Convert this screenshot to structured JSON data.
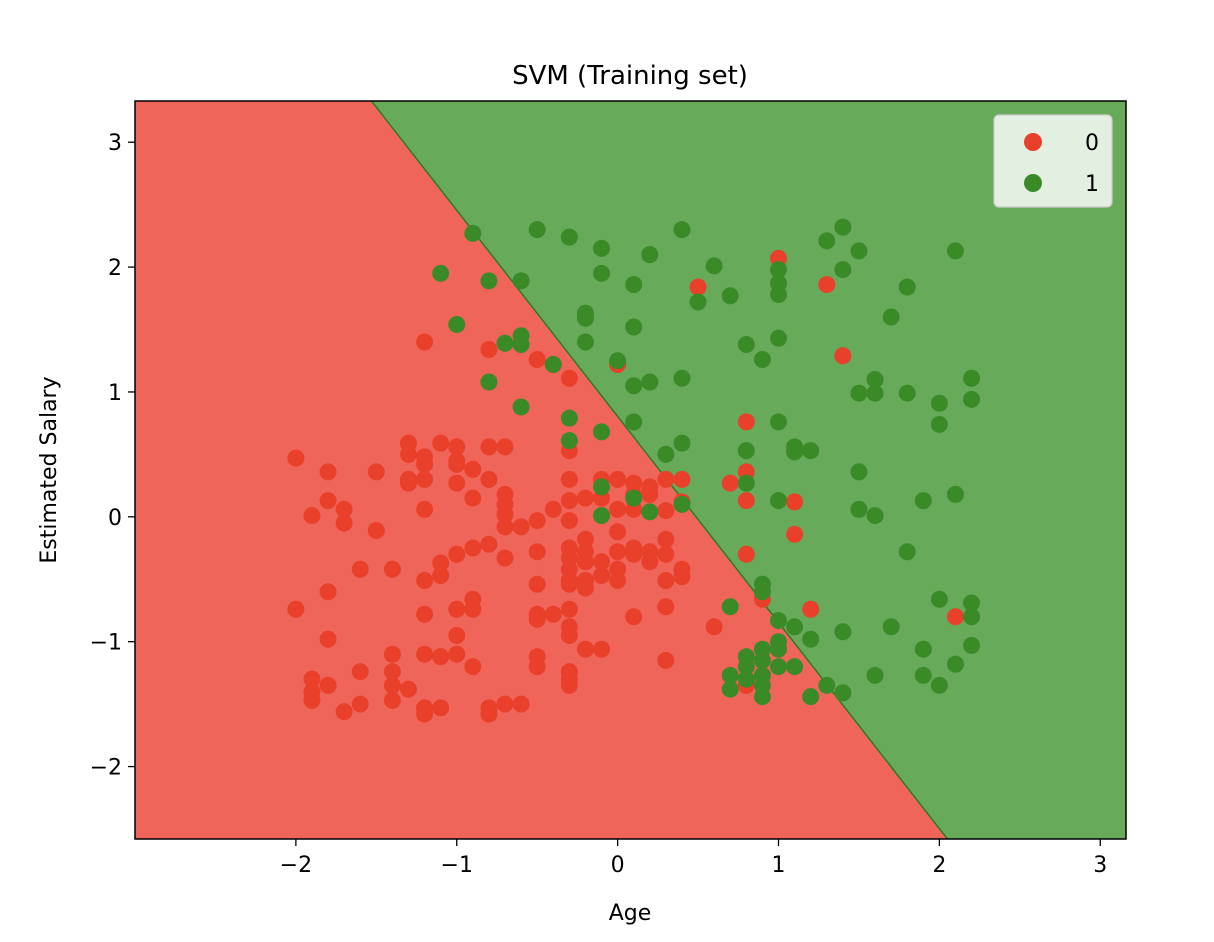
{
  "chart_data": {
    "type": "scatter",
    "title": "SVM (Training set)",
    "xlabel": "Age",
    "ylabel": "Estimated Salary",
    "xlim": [
      -3.0,
      3.16
    ],
    "ylim": [
      -2.58,
      3.33
    ],
    "xticks": [
      -2,
      -1,
      0,
      1,
      2,
      3
    ],
    "yticks": [
      -2,
      -1,
      0,
      1,
      2,
      3
    ],
    "xtick_labels": [
      "−2",
      "−1",
      "0",
      "1",
      "2",
      "3"
    ],
    "ytick_labels": [
      "−2",
      "−1",
      "0",
      "1",
      "2",
      "3"
    ],
    "grid": false,
    "legend_position": "top-right",
    "decision_boundary": {
      "p1": [
        -1.53,
        3.33
      ],
      "p2": [
        2.05,
        -2.58
      ]
    },
    "regions": [
      {
        "class": "0",
        "side": "lower-left",
        "color": "#f0655a"
      },
      {
        "class": "1",
        "side": "upper-right",
        "color": "#66aa5a"
      }
    ],
    "series": [
      {
        "name": "0",
        "color": "#e8402a",
        "points": [
          [
            -2.0,
            0.47
          ],
          [
            -2.0,
            -0.74
          ],
          [
            -1.9,
            0.01
          ],
          [
            -1.9,
            -1.3
          ],
          [
            -1.9,
            -1.4
          ],
          [
            -1.9,
            -1.47
          ],
          [
            -1.8,
            0.36
          ],
          [
            -1.8,
            0.13
          ],
          [
            -1.8,
            -0.6
          ],
          [
            -1.8,
            -0.98
          ],
          [
            -1.8,
            -1.35
          ],
          [
            -1.7,
            0.06
          ],
          [
            -1.7,
            -0.05
          ],
          [
            -1.7,
            -1.56
          ],
          [
            -1.6,
            -0.42
          ],
          [
            -1.6,
            -1.24
          ],
          [
            -1.6,
            -1.5
          ],
          [
            -1.5,
            0.36
          ],
          [
            -1.5,
            -0.11
          ],
          [
            -1.4,
            -0.42
          ],
          [
            -1.4,
            -1.1
          ],
          [
            -1.4,
            -1.24
          ],
          [
            -1.4,
            -1.35
          ],
          [
            -1.4,
            -1.47
          ],
          [
            -1.3,
            0.59
          ],
          [
            -1.3,
            0.5
          ],
          [
            -1.3,
            0.3
          ],
          [
            -1.3,
            0.27
          ],
          [
            -1.3,
            -1.38
          ],
          [
            -1.2,
            1.4
          ],
          [
            -1.2,
            0.48
          ],
          [
            -1.2,
            0.42
          ],
          [
            -1.2,
            0.3
          ],
          [
            -1.2,
            0.06
          ],
          [
            -1.2,
            -0.51
          ],
          [
            -1.2,
            -0.78
          ],
          [
            -1.2,
            -1.1
          ],
          [
            -1.2,
            -1.53
          ],
          [
            -1.2,
            -1.58
          ],
          [
            -1.1,
            0.59
          ],
          [
            -1.1,
            -0.37
          ],
          [
            -1.1,
            -0.47
          ],
          [
            -1.1,
            -1.12
          ],
          [
            -1.1,
            -1.53
          ],
          [
            -1.0,
            0.56
          ],
          [
            -1.0,
            0.45
          ],
          [
            -1.0,
            0.42
          ],
          [
            -1.0,
            0.27
          ],
          [
            -1.0,
            -0.3
          ],
          [
            -1.0,
            -0.74
          ],
          [
            -1.0,
            -0.95
          ],
          [
            -1.0,
            -1.1
          ],
          [
            -0.9,
            0.38
          ],
          [
            -0.9,
            0.15
          ],
          [
            -0.9,
            -0.25
          ],
          [
            -0.9,
            -0.66
          ],
          [
            -0.9,
            -0.74
          ],
          [
            -0.9,
            -1.2
          ],
          [
            -0.8,
            1.34
          ],
          [
            -0.8,
            0.56
          ],
          [
            -0.8,
            0.3
          ],
          [
            -0.8,
            -0.22
          ],
          [
            -0.8,
            -1.53
          ],
          [
            -0.8,
            -1.58
          ],
          [
            -0.7,
            0.56
          ],
          [
            -0.7,
            0.18
          ],
          [
            -0.7,
            0.1
          ],
          [
            -0.7,
            0.02
          ],
          [
            -0.7,
            -0.08
          ],
          [
            -0.7,
            -0.33
          ],
          [
            -0.7,
            -1.5
          ],
          [
            -0.6,
            -0.08
          ],
          [
            -0.6,
            -1.5
          ],
          [
            -0.5,
            1.26
          ],
          [
            -0.5,
            -0.03
          ],
          [
            -0.5,
            -0.28
          ],
          [
            -0.5,
            -0.54
          ],
          [
            -0.5,
            -0.78
          ],
          [
            -0.5,
            -0.82
          ],
          [
            -0.5,
            -1.12
          ],
          [
            -0.5,
            -1.2
          ],
          [
            -0.4,
            1.22
          ],
          [
            -0.4,
            0.06
          ],
          [
            -0.4,
            -0.78
          ],
          [
            -0.3,
            1.11
          ],
          [
            -0.3,
            0.53
          ],
          [
            -0.3,
            0.3
          ],
          [
            -0.3,
            0.13
          ],
          [
            -0.3,
            -0.03
          ],
          [
            -0.3,
            -0.25
          ],
          [
            -0.3,
            -0.33
          ],
          [
            -0.3,
            -0.42
          ],
          [
            -0.3,
            -0.51
          ],
          [
            -0.3,
            -0.54
          ],
          [
            -0.3,
            -0.74
          ],
          [
            -0.3,
            -0.88
          ],
          [
            -0.3,
            -0.95
          ],
          [
            -0.3,
            -1.24
          ],
          [
            -0.3,
            -1.3
          ],
          [
            -0.3,
            -1.35
          ],
          [
            -0.2,
            0.15
          ],
          [
            -0.2,
            -0.18
          ],
          [
            -0.2,
            -0.28
          ],
          [
            -0.2,
            -0.36
          ],
          [
            -0.2,
            -0.51
          ],
          [
            -0.2,
            -0.57
          ],
          [
            -0.2,
            -1.06
          ],
          [
            -0.1,
            0.3
          ],
          [
            -0.1,
            0.15
          ],
          [
            -0.1,
            -0.36
          ],
          [
            -0.1,
            -0.47
          ],
          [
            -0.1,
            -1.06
          ],
          [
            0.0,
            1.22
          ],
          [
            0.0,
            0.3
          ],
          [
            0.0,
            0.06
          ],
          [
            0.0,
            -0.12
          ],
          [
            0.0,
            -0.28
          ],
          [
            0.0,
            -0.42
          ],
          [
            0.0,
            -0.51
          ],
          [
            0.1,
            0.27
          ],
          [
            0.1,
            0.18
          ],
          [
            0.1,
            0.06
          ],
          [
            0.1,
            -0.25
          ],
          [
            0.1,
            -0.3
          ],
          [
            0.1,
            -0.8
          ],
          [
            0.2,
            0.24
          ],
          [
            0.2,
            0.18
          ],
          [
            0.2,
            -0.28
          ],
          [
            0.2,
            -0.36
          ],
          [
            0.3,
            0.3
          ],
          [
            0.3,
            0.05
          ],
          [
            0.3,
            -0.18
          ],
          [
            0.3,
            -0.3
          ],
          [
            0.3,
            -0.51
          ],
          [
            0.3,
            -0.72
          ],
          [
            0.3,
            -1.15
          ],
          [
            0.4,
            0.3
          ],
          [
            0.4,
            0.12
          ],
          [
            0.4,
            -0.42
          ],
          [
            0.4,
            -0.48
          ],
          [
            0.5,
            1.84
          ],
          [
            0.6,
            -0.88
          ],
          [
            0.7,
            0.27
          ],
          [
            0.8,
            0.76
          ],
          [
            0.8,
            0.36
          ],
          [
            0.8,
            0.13
          ],
          [
            0.8,
            -0.3
          ],
          [
            0.8,
            -1.35
          ],
          [
            0.9,
            -0.66
          ],
          [
            1.0,
            2.07
          ],
          [
            1.1,
            0.12
          ],
          [
            1.1,
            -0.14
          ],
          [
            1.2,
            -0.74
          ],
          [
            1.3,
            1.86
          ],
          [
            1.4,
            1.29
          ],
          [
            2.1,
            -0.8
          ]
        ]
      },
      {
        "name": "1",
        "color": "#3a8a28",
        "points": [
          [
            -1.1,
            1.95
          ],
          [
            -1.0,
            1.54
          ],
          [
            -0.9,
            2.27
          ],
          [
            -0.8,
            1.89
          ],
          [
            -0.8,
            1.08
          ],
          [
            -0.7,
            1.39
          ],
          [
            -0.6,
            1.89
          ],
          [
            -0.6,
            1.45
          ],
          [
            -0.6,
            1.38
          ],
          [
            -0.6,
            0.88
          ],
          [
            -0.5,
            2.3
          ],
          [
            -0.4,
            1.22
          ],
          [
            -0.3,
            2.24
          ],
          [
            -0.3,
            0.79
          ],
          [
            -0.3,
            0.61
          ],
          [
            -0.2,
            1.63
          ],
          [
            -0.2,
            1.59
          ],
          [
            -0.2,
            1.4
          ],
          [
            -0.1,
            2.15
          ],
          [
            -0.1,
            1.95
          ],
          [
            -0.1,
            0.68
          ],
          [
            -0.1,
            0.24
          ],
          [
            -0.1,
            0.01
          ],
          [
            0.0,
            1.25
          ],
          [
            0.1,
            1.86
          ],
          [
            0.1,
            1.52
          ],
          [
            0.1,
            1.05
          ],
          [
            0.1,
            0.76
          ],
          [
            0.1,
            0.15
          ],
          [
            0.2,
            2.1
          ],
          [
            0.2,
            1.08
          ],
          [
            0.2,
            0.04
          ],
          [
            0.3,
            0.5
          ],
          [
            0.4,
            2.3
          ],
          [
            0.4,
            1.11
          ],
          [
            0.4,
            0.59
          ],
          [
            0.4,
            0.1
          ],
          [
            0.5,
            1.72
          ],
          [
            0.6,
            2.01
          ],
          [
            0.7,
            1.77
          ],
          [
            0.7,
            -0.72
          ],
          [
            0.7,
            -1.27
          ],
          [
            0.7,
            -1.38
          ],
          [
            0.8,
            1.38
          ],
          [
            0.8,
            0.53
          ],
          [
            0.8,
            0.27
          ],
          [
            0.8,
            -1.12
          ],
          [
            0.8,
            -1.2
          ],
          [
            0.8,
            -1.3
          ],
          [
            0.9,
            1.26
          ],
          [
            0.9,
            -0.54
          ],
          [
            0.9,
            -0.6
          ],
          [
            0.9,
            -1.06
          ],
          [
            0.9,
            -1.15
          ],
          [
            0.9,
            -1.27
          ],
          [
            0.9,
            -1.35
          ],
          [
            0.9,
            -1.44
          ],
          [
            1.0,
            1.98
          ],
          [
            1.0,
            1.87
          ],
          [
            1.0,
            1.78
          ],
          [
            1.0,
            1.43
          ],
          [
            1.0,
            0.76
          ],
          [
            1.0,
            0.13
          ],
          [
            1.0,
            -0.83
          ],
          [
            1.0,
            -1.0
          ],
          [
            1.0,
            -1.06
          ],
          [
            1.0,
            -1.2
          ],
          [
            1.1,
            0.56
          ],
          [
            1.1,
            0.52
          ],
          [
            1.1,
            -0.88
          ],
          [
            1.1,
            -1.2
          ],
          [
            1.2,
            0.53
          ],
          [
            1.2,
            -0.98
          ],
          [
            1.2,
            -1.44
          ],
          [
            1.3,
            2.21
          ],
          [
            1.3,
            -1.35
          ],
          [
            1.4,
            2.32
          ],
          [
            1.4,
            1.98
          ],
          [
            1.4,
            -0.92
          ],
          [
            1.4,
            -1.41
          ],
          [
            1.5,
            2.13
          ],
          [
            1.5,
            0.99
          ],
          [
            1.5,
            0.36
          ],
          [
            1.5,
            0.06
          ],
          [
            1.6,
            1.1
          ],
          [
            1.6,
            0.99
          ],
          [
            1.6,
            0.01
          ],
          [
            1.6,
            -1.27
          ],
          [
            1.7,
            1.6
          ],
          [
            1.7,
            -0.88
          ],
          [
            1.8,
            1.84
          ],
          [
            1.8,
            0.99
          ],
          [
            1.8,
            -0.28
          ],
          [
            1.9,
            0.13
          ],
          [
            1.9,
            -1.06
          ],
          [
            1.9,
            -1.27
          ],
          [
            2.0,
            0.91
          ],
          [
            2.0,
            0.74
          ],
          [
            2.0,
            -0.66
          ],
          [
            2.0,
            -1.35
          ],
          [
            2.1,
            2.13
          ],
          [
            2.1,
            0.18
          ],
          [
            2.1,
            -1.18
          ],
          [
            2.2,
            1.11
          ],
          [
            2.2,
            0.94
          ],
          [
            2.2,
            -0.69
          ],
          [
            2.2,
            -0.8
          ],
          [
            2.2,
            -1.03
          ]
        ]
      }
    ]
  }
}
